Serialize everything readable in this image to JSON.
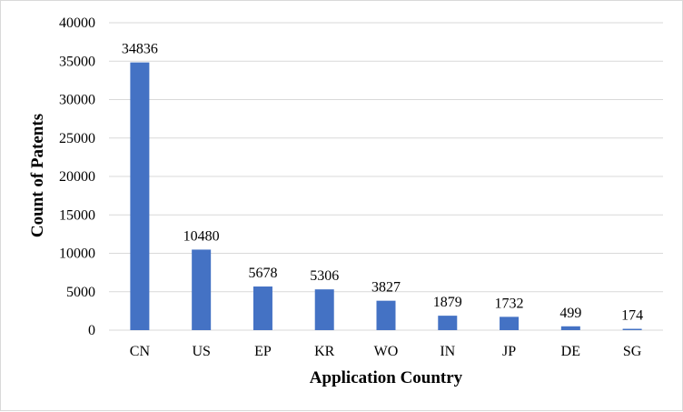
{
  "chart_data": {
    "type": "bar",
    "title": "",
    "xlabel": "Application Country",
    "ylabel": "Count of Patents",
    "categories": [
      "CN",
      "US",
      "EP",
      "KR",
      "WO",
      "IN",
      "JP",
      "DE",
      "SG"
    ],
    "values": [
      34836,
      10480,
      5678,
      5306,
      3827,
      1879,
      1732,
      499,
      174
    ],
    "data_labels": [
      "34836",
      "10480",
      "5678",
      "5306",
      "3827",
      "1879",
      "1732",
      "499",
      "174"
    ],
    "ylim": [
      0,
      40000
    ],
    "yticks": [
      0,
      5000,
      10000,
      15000,
      20000,
      25000,
      30000,
      35000,
      40000
    ],
    "ytick_labels": [
      "0",
      "5000",
      "10000",
      "15000",
      "20000",
      "25000",
      "30000",
      "35000",
      "40000"
    ],
    "grid": true,
    "legend": "none",
    "colors": {
      "bar": "#4472c4",
      "grid": "#d9d9d9",
      "frame": "#d9d9d9"
    }
  }
}
